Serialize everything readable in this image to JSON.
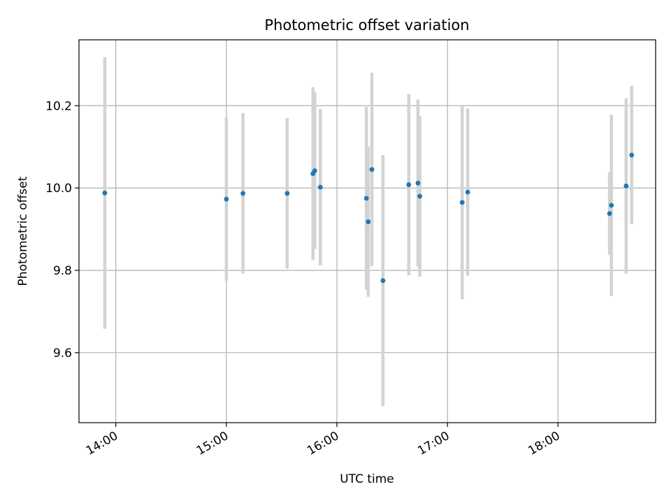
{
  "chart_data": {
    "type": "scatter",
    "title": "Photometric offset variation",
    "xlabel": "UTC time",
    "ylabel": "Photometric offset",
    "x_axis": {
      "type": "time",
      "range": [
        "13:40",
        "18:53"
      ],
      "ticks": [
        "14:00",
        "15:00",
        "16:00",
        "17:00",
        "18:00"
      ]
    },
    "y_axis": {
      "range": [
        9.43,
        10.36
      ],
      "ticks": [
        "9.6",
        "9.8",
        "10.0",
        "10.2"
      ]
    },
    "grid": true,
    "colors": {
      "marker": "#1f77b4",
      "errorbar": "#d3d3d3",
      "grid": "#b0b0b0"
    },
    "points": [
      {
        "x": "13:54",
        "y": 9.988,
        "yerr": 0.33
      },
      {
        "x": "15:00",
        "y": 9.973,
        "yerr": 0.198
      },
      {
        "x": "15:09",
        "y": 9.987,
        "yerr": 0.195
      },
      {
        "x": "15:33",
        "y": 9.987,
        "yerr": 0.183
      },
      {
        "x": "15:47",
        "y": 10.035,
        "yerr": 0.21
      },
      {
        "x": "15:48",
        "y": 10.042,
        "yerr": 0.19
      },
      {
        "x": "15:51",
        "y": 10.002,
        "yerr": 0.19
      },
      {
        "x": "16:16",
        "y": 9.975,
        "yerr": 0.222
      },
      {
        "x": "16:17",
        "y": 9.918,
        "yerr": 0.182
      },
      {
        "x": "16:19",
        "y": 10.045,
        "yerr": 0.235
      },
      {
        "x": "16:25",
        "y": 9.775,
        "yerr": 0.305
      },
      {
        "x": "16:39",
        "y": 10.008,
        "yerr": 0.22
      },
      {
        "x": "16:44",
        "y": 10.012,
        "yerr": 0.203
      },
      {
        "x": "16:45",
        "y": 9.98,
        "yerr": 0.195
      },
      {
        "x": "17:08",
        "y": 9.965,
        "yerr": 0.235
      },
      {
        "x": "17:11",
        "y": 9.99,
        "yerr": 0.203
      },
      {
        "x": "18:28",
        "y": 9.938,
        "yerr": 0.1
      },
      {
        "x": "18:29",
        "y": 9.958,
        "yerr": 0.22
      },
      {
        "x": "18:37",
        "y": 10.005,
        "yerr": 0.213
      },
      {
        "x": "18:40",
        "y": 10.08,
        "yerr": 0.168
      }
    ]
  }
}
